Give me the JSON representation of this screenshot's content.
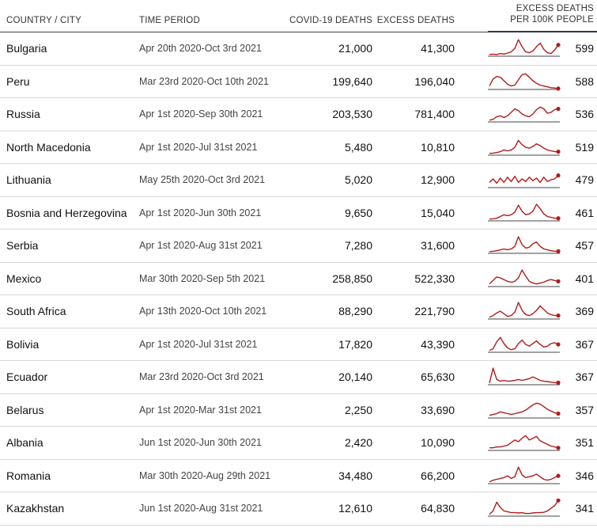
{
  "chart_data": {
    "type": "table",
    "columns": [
      "COUNTRY / CITY",
      "TIME PERIOD",
      "COVID-19 DEATHS",
      "EXCESS DEATHS",
      "EXCESS DEATHS PER 100K PEOPLE"
    ],
    "header_rate_line1": "EXCESS DEATHS",
    "header_rate_line2": "PER 100K PEOPLE",
    "rows": [
      {
        "country": "Bulgaria",
        "period": "Apr 20th 2020-Oct 3rd 2021",
        "covid_deaths": "21,000",
        "excess_deaths": "41,300",
        "per_100k": "599",
        "trend": [
          0.1,
          0.12,
          0.1,
          0.15,
          0.12,
          0.18,
          0.25,
          0.45,
          0.95,
          0.55,
          0.25,
          0.2,
          0.3,
          0.55,
          0.75,
          0.4,
          0.2,
          0.15,
          0.35,
          0.65
        ]
      },
      {
        "country": "Peru",
        "period": "Mar 23rd 2020-Oct 10th 2021",
        "covid_deaths": "199,640",
        "excess_deaths": "196,040",
        "per_100k": "588",
        "trend": [
          0.2,
          0.6,
          0.75,
          0.7,
          0.5,
          0.3,
          0.2,
          0.25,
          0.55,
          0.85,
          0.9,
          0.7,
          0.5,
          0.35,
          0.25,
          0.2,
          0.15,
          0.1,
          0.08,
          0.05
        ]
      },
      {
        "country": "Russia",
        "period": "Apr 1st 2020-Sep 30th 2021",
        "covid_deaths": "203,530",
        "excess_deaths": "781,400",
        "per_100k": "536",
        "trend": [
          0.1,
          0.15,
          0.3,
          0.35,
          0.25,
          0.35,
          0.55,
          0.75,
          0.65,
          0.45,
          0.35,
          0.3,
          0.45,
          0.7,
          0.85,
          0.75,
          0.5,
          0.55,
          0.7,
          0.75
        ]
      },
      {
        "country": "North Macedonia",
        "period": "Apr 1st 2020-Jul 31st 2021",
        "covid_deaths": "5,480",
        "excess_deaths": "10,810",
        "per_100k": "519",
        "trend": [
          0.1,
          0.12,
          0.15,
          0.2,
          0.3,
          0.25,
          0.3,
          0.45,
          0.85,
          0.6,
          0.45,
          0.4,
          0.5,
          0.65,
          0.55,
          0.4,
          0.3,
          0.25,
          0.2,
          0.2
        ]
      },
      {
        "country": "Lithuania",
        "period": "May 25th 2020-Oct 3rd 2021",
        "covid_deaths": "5,020",
        "excess_deaths": "12,900",
        "per_100k": "479",
        "trend": [
          0.3,
          0.5,
          0.25,
          0.55,
          0.3,
          0.6,
          0.35,
          0.65,
          0.3,
          0.5,
          0.35,
          0.6,
          0.4,
          0.55,
          0.3,
          0.6,
          0.35,
          0.45,
          0.5,
          0.7
        ]
      },
      {
        "country": "Bosnia and Herzegovina",
        "period": "Apr 1st 2020-Jun 30th 2021",
        "covid_deaths": "9,650",
        "excess_deaths": "15,040",
        "per_100k": "461",
        "trend": [
          0.1,
          0.12,
          0.15,
          0.25,
          0.35,
          0.3,
          0.35,
          0.5,
          0.9,
          0.55,
          0.35,
          0.4,
          0.55,
          0.95,
          0.7,
          0.4,
          0.25,
          0.2,
          0.15,
          0.15
        ]
      },
      {
        "country": "Serbia",
        "period": "Apr 1st 2020-Aug 31st 2021",
        "covid_deaths": "7,280",
        "excess_deaths": "31,600",
        "per_100k": "457",
        "trend": [
          0.1,
          0.12,
          0.15,
          0.2,
          0.25,
          0.2,
          0.25,
          0.4,
          0.95,
          0.5,
          0.3,
          0.35,
          0.55,
          0.65,
          0.4,
          0.25,
          0.2,
          0.15,
          0.12,
          0.12
        ]
      },
      {
        "country": "Mexico",
        "period": "Mar 30th 2020-Sep 5th 2021",
        "covid_deaths": "258,850",
        "excess_deaths": "522,330",
        "per_100k": "401",
        "trend": [
          0.15,
          0.35,
          0.55,
          0.5,
          0.4,
          0.3,
          0.25,
          0.3,
          0.5,
          0.95,
          0.6,
          0.3,
          0.2,
          0.15,
          0.2,
          0.25,
          0.35,
          0.4,
          0.35,
          0.3
        ]
      },
      {
        "country": "South Africa",
        "period": "Apr 13th 2020-Oct 10th 2021",
        "covid_deaths": "88,290",
        "excess_deaths": "221,790",
        "per_100k": "369",
        "trend": [
          0.1,
          0.2,
          0.35,
          0.45,
          0.3,
          0.15,
          0.2,
          0.4,
          0.95,
          0.5,
          0.25,
          0.2,
          0.3,
          0.5,
          0.75,
          0.55,
          0.35,
          0.25,
          0.2,
          0.2
        ]
      },
      {
        "country": "Bolivia",
        "period": "Apr 1st 2020-Jul 31st 2021",
        "covid_deaths": "17,820",
        "excess_deaths": "43,390",
        "per_100k": "367",
        "trend": [
          0.1,
          0.2,
          0.6,
          0.85,
          0.5,
          0.25,
          0.15,
          0.2,
          0.5,
          0.7,
          0.45,
          0.35,
          0.5,
          0.65,
          0.45,
          0.3,
          0.35,
          0.5,
          0.55,
          0.45
        ]
      },
      {
        "country": "Ecuador",
        "period": "Mar 23rd 2020-Oct 3rd 2021",
        "covid_deaths": "20,140",
        "excess_deaths": "65,630",
        "per_100k": "367",
        "trend": [
          0.1,
          0.95,
          0.3,
          0.2,
          0.25,
          0.2,
          0.22,
          0.25,
          0.3,
          0.25,
          0.3,
          0.35,
          0.45,
          0.35,
          0.25,
          0.2,
          0.18,
          0.15,
          0.12,
          0.12
        ]
      },
      {
        "country": "Belarus",
        "period": "Apr 1st 2020-Mar 31st 2021",
        "covid_deaths": "2,250",
        "excess_deaths": "33,690",
        "per_100k": "357",
        "trend": [
          0.15,
          0.2,
          0.25,
          0.35,
          0.3,
          0.25,
          0.2,
          0.25,
          0.3,
          0.35,
          0.45,
          0.6,
          0.75,
          0.85,
          0.8,
          0.65,
          0.5,
          0.4,
          0.3,
          0.25
        ]
      },
      {
        "country": "Albania",
        "period": "Jun 1st 2020-Jun 30th 2021",
        "covid_deaths": "2,420",
        "excess_deaths": "10,090",
        "per_100k": "351",
        "trend": [
          0.15,
          0.15,
          0.2,
          0.2,
          0.25,
          0.3,
          0.45,
          0.6,
          0.5,
          0.7,
          0.85,
          0.6,
          0.7,
          0.8,
          0.55,
          0.45,
          0.35,
          0.25,
          0.2,
          0.15
        ]
      },
      {
        "country": "Romania",
        "period": "Mar 30th 2020-Aug 29th 2021",
        "covid_deaths": "34,480",
        "excess_deaths": "66,200",
        "per_100k": "346",
        "trend": [
          0.1,
          0.2,
          0.25,
          0.3,
          0.35,
          0.45,
          0.3,
          0.4,
          0.95,
          0.5,
          0.35,
          0.4,
          0.45,
          0.55,
          0.4,
          0.25,
          0.2,
          0.25,
          0.35,
          0.45
        ]
      },
      {
        "country": "Kazakhstan",
        "period": "Jun 1st 2020-Aug 31st 2021",
        "covid_deaths": "12,610",
        "excess_deaths": "64,830",
        "per_100k": "341",
        "trend": [
          0.1,
          0.3,
          0.8,
          0.5,
          0.3,
          0.25,
          0.2,
          0.2,
          0.18,
          0.2,
          0.15,
          0.15,
          0.18,
          0.2,
          0.2,
          0.22,
          0.3,
          0.45,
          0.6,
          0.9
        ]
      }
    ],
    "line_color": "#b01c1c",
    "baseline_color": "#444444"
  }
}
